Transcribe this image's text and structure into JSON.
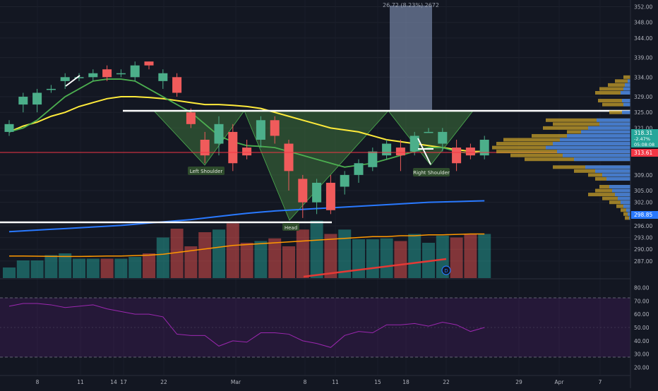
{
  "colors": {
    "background": "#131722",
    "up": "#26a69a",
    "down": "#ef5350",
    "candle_up": "#4caf8a",
    "candle_down": "#f05b5b",
    "ma_fast": "#4caf50",
    "ma_slow": "#ffeb3b",
    "ma_200": "#2979ff",
    "vol_ma": "#ff9800",
    "rsi": "#9c27b0",
    "pattern_fill": "#3b6b3a",
    "price_line": "#f23645"
  },
  "chart_data": [
    {
      "type": "candlestick",
      "title": "",
      "y_axis_ticks": [
        "352.00",
        "348.00",
        "344.00",
        "339.00",
        "334.00",
        "329.00",
        "325.00",
        "321.00",
        "318.31",
        "313.61",
        "309.00",
        "305.00",
        "302.00",
        "298.85",
        "296.00",
        "293.00",
        "290.00",
        "287.00"
      ],
      "ylim": [
        283,
        353
      ],
      "x_axis_ticks": [
        "8",
        "11",
        "14",
        "17",
        "22",
        "Mar",
        "8",
        "11",
        "15",
        "18",
        "22",
        "29",
        "Apr",
        "7"
      ],
      "last_price": 318.31,
      "last_change_pct": "-2.47%",
      "countdown": "05:08:08",
      "support_line_price": 313.61,
      "ma200_price": 298.85,
      "measure_label": "26.72 (8.23%) 2672",
      "pattern_labels": {
        "left_shoulder": "Left Shoulder",
        "head": "Head",
        "right_shoulder": "Right Shoulder"
      },
      "neckline_price": 324.0,
      "lower_line_price": 297.5,
      "candles": [
        {
          "o": 320,
          "h": 323,
          "l": 319,
          "c": 322
        },
        {
          "o": 327,
          "h": 330,
          "l": 325,
          "c": 329
        },
        {
          "o": 327,
          "h": 331,
          "l": 325,
          "c": 330
        },
        {
          "o": 331,
          "h": 332,
          "l": 330,
          "c": 331
        },
        {
          "o": 333,
          "h": 335,
          "l": 331,
          "c": 334
        },
        {
          "o": 334,
          "h": 335,
          "l": 333,
          "c": 334
        },
        {
          "o": 334,
          "h": 336,
          "l": 333,
          "c": 335
        },
        {
          "o": 336,
          "h": 337,
          "l": 333,
          "c": 334
        },
        {
          "o": 335,
          "h": 336,
          "l": 334,
          "c": 335
        },
        {
          "o": 334,
          "h": 338,
          "l": 333,
          "c": 337
        },
        {
          "o": 338,
          "h": 338,
          "l": 336,
          "c": 337
        },
        {
          "o": 333,
          "h": 336,
          "l": 331,
          "c": 335
        },
        {
          "o": 334,
          "h": 335,
          "l": 329,
          "c": 330
        },
        {
          "o": 325,
          "h": 326,
          "l": 321,
          "c": 322
        },
        {
          "o": 318,
          "h": 320,
          "l": 312,
          "c": 314
        },
        {
          "o": 317,
          "h": 324,
          "l": 314,
          "c": 322
        },
        {
          "o": 320,
          "h": 322,
          "l": 310,
          "c": 312
        },
        {
          "o": 316,
          "h": 318,
          "l": 313,
          "c": 314
        },
        {
          "o": 318,
          "h": 324,
          "l": 316,
          "c": 323
        },
        {
          "o": 323,
          "h": 324,
          "l": 317,
          "c": 319
        },
        {
          "o": 317,
          "h": 318,
          "l": 305,
          "c": 310
        },
        {
          "o": 308,
          "h": 309,
          "l": 298,
          "c": 302
        },
        {
          "o": 302,
          "h": 308,
          "l": 299,
          "c": 307
        },
        {
          "o": 307,
          "h": 309,
          "l": 299,
          "c": 300
        },
        {
          "o": 306,
          "h": 310,
          "l": 304,
          "c": 309
        },
        {
          "o": 309,
          "h": 313,
          "l": 307,
          "c": 312
        },
        {
          "o": 311,
          "h": 316,
          "l": 310,
          "c": 315
        },
        {
          "o": 314,
          "h": 318,
          "l": 313,
          "c": 317
        },
        {
          "o": 316,
          "h": 318,
          "l": 310,
          "c": 314
        },
        {
          "o": 315,
          "h": 320,
          "l": 314,
          "c": 319
        },
        {
          "o": 320,
          "h": 321,
          "l": 320,
          "c": 320
        },
        {
          "o": 317,
          "h": 321,
          "l": 315,
          "c": 320
        },
        {
          "o": 316,
          "h": 318,
          "l": 310,
          "c": 312
        },
        {
          "o": 316,
          "h": 317,
          "l": 313,
          "c": 314
        },
        {
          "o": 314,
          "h": 319,
          "l": 313,
          "c": 318
        }
      ],
      "ma_fast": [
        320,
        321,
        323,
        326,
        329,
        331,
        333,
        333.5,
        333.5,
        333,
        331,
        329,
        327,
        325,
        322,
        319,
        317.5,
        316.5,
        316.3,
        316,
        315,
        314,
        313,
        312,
        311,
        311.5,
        312,
        313,
        314,
        315,
        316,
        316,
        315,
        314.5,
        315
      ],
      "ma_slow": [
        320,
        321.5,
        322.5,
        324,
        325,
        326.5,
        327.5,
        328.5,
        329,
        329,
        328.8,
        328.5,
        328,
        327.5,
        327,
        327,
        326.8,
        326.5,
        326,
        325,
        324,
        323,
        322,
        321,
        320.5,
        320,
        319,
        318,
        317.5,
        317,
        316.5,
        316,
        315.5,
        315,
        315
      ],
      "ma_200": [
        294.5,
        294.7,
        294.9,
        295.1,
        295.3,
        295.5,
        295.7,
        295.9,
        296.1,
        296.4,
        296.7,
        297,
        297.3,
        297.6,
        298,
        298.4,
        298.8,
        299.2,
        299.5,
        299.8,
        300,
        300.2,
        300.4,
        300.6,
        300.8,
        301,
        301.2,
        301.4,
        301.6,
        301.8,
        302,
        302.1,
        302.2,
        302.3,
        302.4
      ],
      "volume": [
        12,
        20,
        20,
        26,
        28,
        22,
        22,
        22,
        22,
        24,
        28,
        46,
        56,
        36,
        52,
        55,
        62,
        40,
        42,
        45,
        36,
        55,
        65,
        50,
        55,
        44,
        44,
        45,
        42,
        50,
        40,
        48,
        46,
        50,
        50
      ],
      "volume_ma": [
        25,
        25,
        24.8,
        24.6,
        24.5,
        24.5,
        24.7,
        25,
        25,
        25.5,
        26,
        27,
        29,
        31,
        33,
        35,
        37,
        38,
        39,
        40,
        41,
        42,
        43,
        44,
        45,
        46,
        47,
        47,
        48,
        48,
        49,
        49,
        49.5,
        50,
        50
      ],
      "volume_axis_ticks": [],
      "rsi_ticks": [
        "80.00",
        "70.00",
        "60.00",
        "50.00",
        "40.00",
        "30.00",
        "20.00"
      ],
      "rsi_ylim": [
        15,
        85
      ],
      "rsi_upper": 70,
      "rsi_lower": 30,
      "rsi": [
        66,
        68,
        68,
        67,
        65,
        66,
        67,
        64,
        62,
        60,
        60,
        58,
        45,
        44,
        44,
        36,
        40,
        39,
        46,
        46,
        45,
        40,
        38,
        35,
        44,
        47,
        46,
        52,
        52,
        53,
        51,
        54,
        52,
        47,
        50
      ]
    }
  ]
}
